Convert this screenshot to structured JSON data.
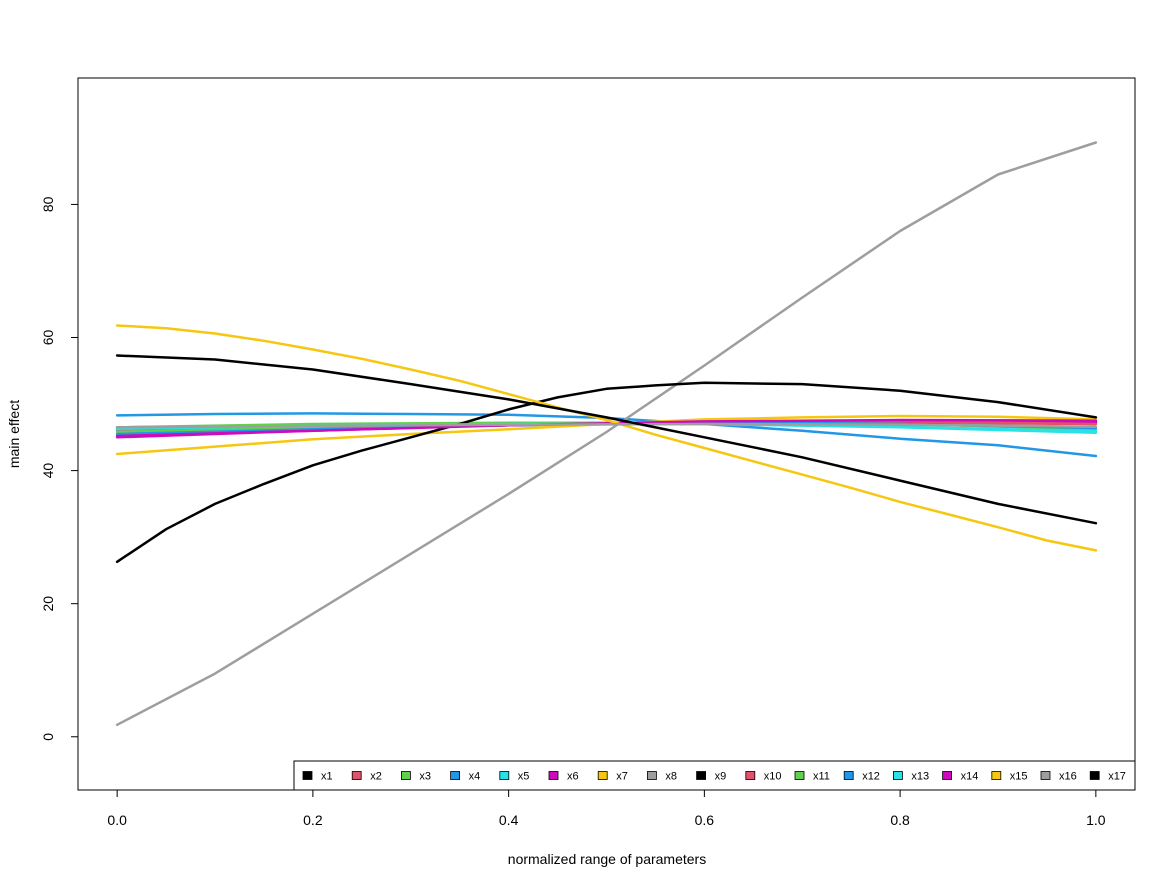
{
  "chart_data": {
    "type": "line",
    "title": "",
    "xlabel": "normalized range of parameters",
    "ylabel": "main effect",
    "xlim": [
      -0.04,
      1.04
    ],
    "ylim": [
      -8,
      99
    ],
    "x_ticks": [
      0.0,
      0.2,
      0.4,
      0.6,
      0.8,
      1.0
    ],
    "x_tick_labels": [
      "0.0",
      "0.2",
      "0.4",
      "0.6",
      "0.8",
      "1.0"
    ],
    "y_ticks": [
      0,
      20,
      40,
      60,
      80
    ],
    "y_tick_labels": [
      "0",
      "20",
      "40",
      "60",
      "80"
    ],
    "grid": false,
    "legend_position": "bottom-right, horizontal",
    "series": [
      {
        "name": "x1",
        "color": "#000000",
        "x": [
          0,
          0.2,
          0.4,
          0.6,
          0.8,
          1.0
        ],
        "y": [
          46.0,
          46.3,
          46.8,
          47.2,
          47.4,
          47.3
        ]
      },
      {
        "name": "x2",
        "color": "#DF536B",
        "x": [
          0,
          0.2,
          0.4,
          0.6,
          0.8,
          1.0
        ],
        "y": [
          46.5,
          46.8,
          47.0,
          47.1,
          47.2,
          47.0
        ]
      },
      {
        "name": "x3",
        "color": "#61D04F",
        "x": [
          0,
          0.2,
          0.4,
          0.6,
          0.8,
          1.0
        ],
        "y": [
          46.5,
          47.0,
          47.2,
          47.2,
          47.0,
          46.5
        ]
      },
      {
        "name": "x4",
        "color": "#2297E6",
        "x": [
          0,
          0.1,
          0.2,
          0.3,
          0.4,
          0.5,
          0.6,
          0.7,
          0.8,
          0.9,
          1.0
        ],
        "y": [
          48.3,
          48.5,
          48.6,
          48.5,
          48.4,
          47.9,
          47.0,
          46.0,
          44.8,
          43.8,
          42.2
        ]
      },
      {
        "name": "x5",
        "color": "#28E2E5",
        "x": [
          0,
          0.2,
          0.4,
          0.6,
          0.8,
          1.0
        ],
        "y": [
          46.0,
          46.5,
          46.9,
          47.0,
          46.5,
          45.7
        ]
      },
      {
        "name": "x6",
        "color": "#CD0BBC",
        "x": [
          0,
          0.2,
          0.4,
          0.6,
          0.8,
          1.0
        ],
        "y": [
          45.0,
          46.0,
          46.9,
          47.3,
          47.3,
          47.2
        ]
      },
      {
        "name": "x7",
        "color": "#F5C710",
        "x": [
          0,
          0.1,
          0.2,
          0.3,
          0.4,
          0.5,
          0.6,
          0.7,
          0.8,
          0.9,
          1.0
        ],
        "y": [
          42.5,
          43.6,
          44.7,
          45.5,
          46.2,
          47.0,
          47.7,
          48.0,
          48.2,
          48.1,
          47.7
        ]
      },
      {
        "name": "x8",
        "color": "#9E9E9E",
        "x": [
          0,
          0.1,
          0.2,
          0.3,
          0.4,
          0.5,
          0.6,
          0.7,
          0.8,
          0.9,
          1.0
        ],
        "y": [
          1.8,
          9.5,
          18.5,
          27.5,
          36.5,
          45.8,
          55.8,
          66.0,
          76.0,
          84.5,
          89.3
        ]
      },
      {
        "name": "x9",
        "color": "#000000",
        "x": [
          0,
          0.05,
          0.1,
          0.15,
          0.2,
          0.25,
          0.3,
          0.35,
          0.4,
          0.45,
          0.5,
          0.55,
          0.6,
          0.7,
          0.8,
          0.9,
          1.0
        ],
        "y": [
          26.3,
          31.2,
          35.0,
          38.0,
          40.8,
          43.0,
          45.0,
          47.0,
          49.2,
          51.0,
          52.3,
          52.8,
          53.2,
          53.0,
          52.0,
          50.3,
          48.0
        ]
      },
      {
        "name": "x10",
        "color": "#DF536B",
        "x": [
          0,
          0.2,
          0.4,
          0.6,
          0.8,
          1.0
        ],
        "y": [
          46.2,
          46.6,
          47.0,
          47.3,
          47.4,
          47.0
        ]
      },
      {
        "name": "x11",
        "color": "#61D04F",
        "x": [
          0,
          0.2,
          0.4,
          0.6,
          0.8,
          1.0
        ],
        "y": [
          45.8,
          46.5,
          47.0,
          47.3,
          47.0,
          46.2
        ]
      },
      {
        "name": "x12",
        "color": "#2297E6",
        "x": [
          0,
          0.2,
          0.4,
          0.6,
          0.8,
          1.0
        ],
        "y": [
          45.5,
          46.2,
          46.8,
          47.3,
          47.0,
          46.4
        ]
      },
      {
        "name": "x13",
        "color": "#28E2E5",
        "x": [
          0,
          0.2,
          0.4,
          0.6,
          0.8,
          1.0
        ],
        "y": [
          46.3,
          46.7,
          47.0,
          47.0,
          46.6,
          45.9
        ]
      },
      {
        "name": "x14",
        "color": "#CD0BBC",
        "x": [
          0,
          0.2,
          0.4,
          0.6,
          0.8,
          1.0
        ],
        "y": [
          45.2,
          46.0,
          46.8,
          47.4,
          47.6,
          47.5
        ]
      },
      {
        "name": "x15",
        "color": "#F5C710",
        "x": [
          0,
          0.05,
          0.1,
          0.15,
          0.2,
          0.25,
          0.3,
          0.35,
          0.4,
          0.45,
          0.5,
          0.55,
          0.6,
          0.65,
          0.7,
          0.75,
          0.8,
          0.85,
          0.9,
          0.95,
          1.0
        ],
        "y": [
          61.8,
          61.4,
          60.6,
          59.5,
          58.2,
          56.8,
          55.2,
          53.5,
          51.5,
          49.5,
          47.6,
          45.4,
          43.4,
          41.4,
          39.4,
          37.4,
          35.3,
          33.4,
          31.5,
          29.5,
          28.0
        ]
      },
      {
        "name": "x16",
        "color": "#9E9E9E",
        "x": [
          0,
          0.2,
          0.4,
          0.6,
          0.8,
          1.0
        ],
        "y": [
          46.5,
          46.7,
          46.9,
          47.0,
          46.9,
          46.6
        ]
      },
      {
        "name": "x17",
        "color": "#000000",
        "x": [
          0,
          0.1,
          0.2,
          0.3,
          0.4,
          0.5,
          0.6,
          0.7,
          0.8,
          0.9,
          1.0
        ],
        "y": [
          57.3,
          56.7,
          55.2,
          53.0,
          50.7,
          48.0,
          45.0,
          42.0,
          38.5,
          35.0,
          32.1
        ]
      }
    ]
  }
}
